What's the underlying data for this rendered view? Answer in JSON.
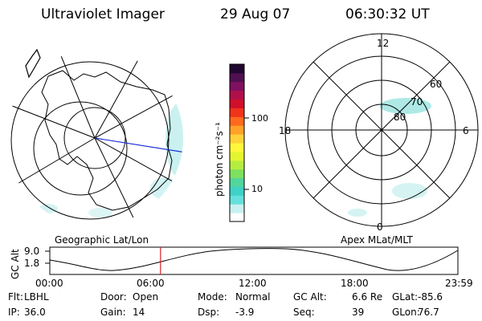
{
  "header": {
    "title": "Ultraviolet Imager",
    "date": "29 Aug 07",
    "time": "06:30:32 UT"
  },
  "colorbar": {
    "unit_label": "photon cm⁻²s⁻¹",
    "ticks": [
      "100",
      "10"
    ],
    "colors": [
      "#ffffff",
      "#c9f0f0",
      "#66e0dc",
      "#3fd2c8",
      "#52d69e",
      "#7ee060",
      "#b6ec40",
      "#e4f530",
      "#fff83a",
      "#ffd23a",
      "#ffa227",
      "#ff6a1e",
      "#f0341a",
      "#d0102a",
      "#b0104a",
      "#801060",
      "#501050",
      "#200830"
    ]
  },
  "polar": {
    "labels": {
      "top": "12",
      "left": "18",
      "right": "6",
      "bottom": "0"
    },
    "rings": [
      "60",
      "70",
      "80"
    ]
  },
  "timeline": {
    "left_title": "Geographic Lat/Lon",
    "right_title": "Apex MLat/MLT",
    "ylabel": "GC Alt",
    "ymax": "9.0",
    "ymin": "1.8",
    "xticks": [
      "00:00",
      "06:00",
      "12:00",
      "18:00",
      "23:59"
    ],
    "marker_fraction": 0.2713
  },
  "params": {
    "row1": [
      {
        "label": "Flt:",
        "value": "LBHL"
      },
      {
        "label": "Door:",
        "value": "Open"
      },
      {
        "label": "Mode:",
        "value": "Normal"
      },
      {
        "label": "GC Alt:",
        "value": "6.6 Re"
      },
      {
        "label": "GLat:",
        "value": "-85.6"
      }
    ],
    "row2": [
      {
        "label": "IP:",
        "value": "36.0"
      },
      {
        "label": "Gain:",
        "value": "14"
      },
      {
        "label": "Dsp:",
        "value": "-3.9"
      },
      {
        "label": "Seq:",
        "value": "39"
      },
      {
        "label": "GLon:",
        "value": "76.7"
      }
    ]
  }
}
